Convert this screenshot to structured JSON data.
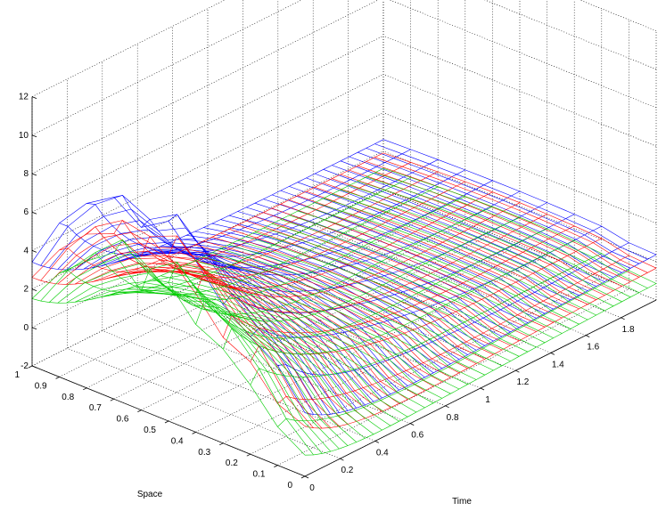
{
  "chart_data": {
    "type": "mesh3d",
    "xlabel": "Time",
    "ylabel": "Space",
    "zlabel": "",
    "xlim": [
      0,
      2
    ],
    "ylim": [
      0,
      1
    ],
    "zlim": [
      -2,
      12
    ],
    "x_ticks": [
      "0",
      "0.2",
      "0.4",
      "0.6",
      "0.8",
      "1",
      "1.2",
      "1.4",
      "1.6",
      "1.8"
    ],
    "y_ticks": [
      "0",
      "0.1",
      "0.2",
      "0.3",
      "0.4",
      "0.5",
      "0.6",
      "0.7",
      "0.8",
      "0.9",
      "1"
    ],
    "z_ticks": [
      "-2",
      "0",
      "2",
      "4",
      "6",
      "8",
      "10",
      "12"
    ],
    "grid": true,
    "series": [
      {
        "color": "#0000ff",
        "initial_profile_at_time_0": [
          1.3,
          3.2,
          4.1,
          5.2,
          6.9,
          8.4,
          7.5,
          8.5,
          7.6,
          6.0,
          3.4
        ],
        "level_at_time_2": 0.6
      },
      {
        "color": "#ff0000",
        "initial_profile_at_time_0": [
          0.6,
          1.2,
          2.8,
          3.5,
          5.2,
          6.6,
          6.0,
          6.6,
          6.0,
          4.6,
          2.6
        ],
        "level_at_time_2": -0.1
      },
      {
        "color": "#00cc00",
        "initial_profile_at_time_0": [
          -0.9,
          0.0,
          1.6,
          2.9,
          3.6,
          5.2,
          4.2,
          5.6,
          4.6,
          3.4,
          1.5
        ],
        "level_at_time_2": -0.9
      }
    ]
  }
}
